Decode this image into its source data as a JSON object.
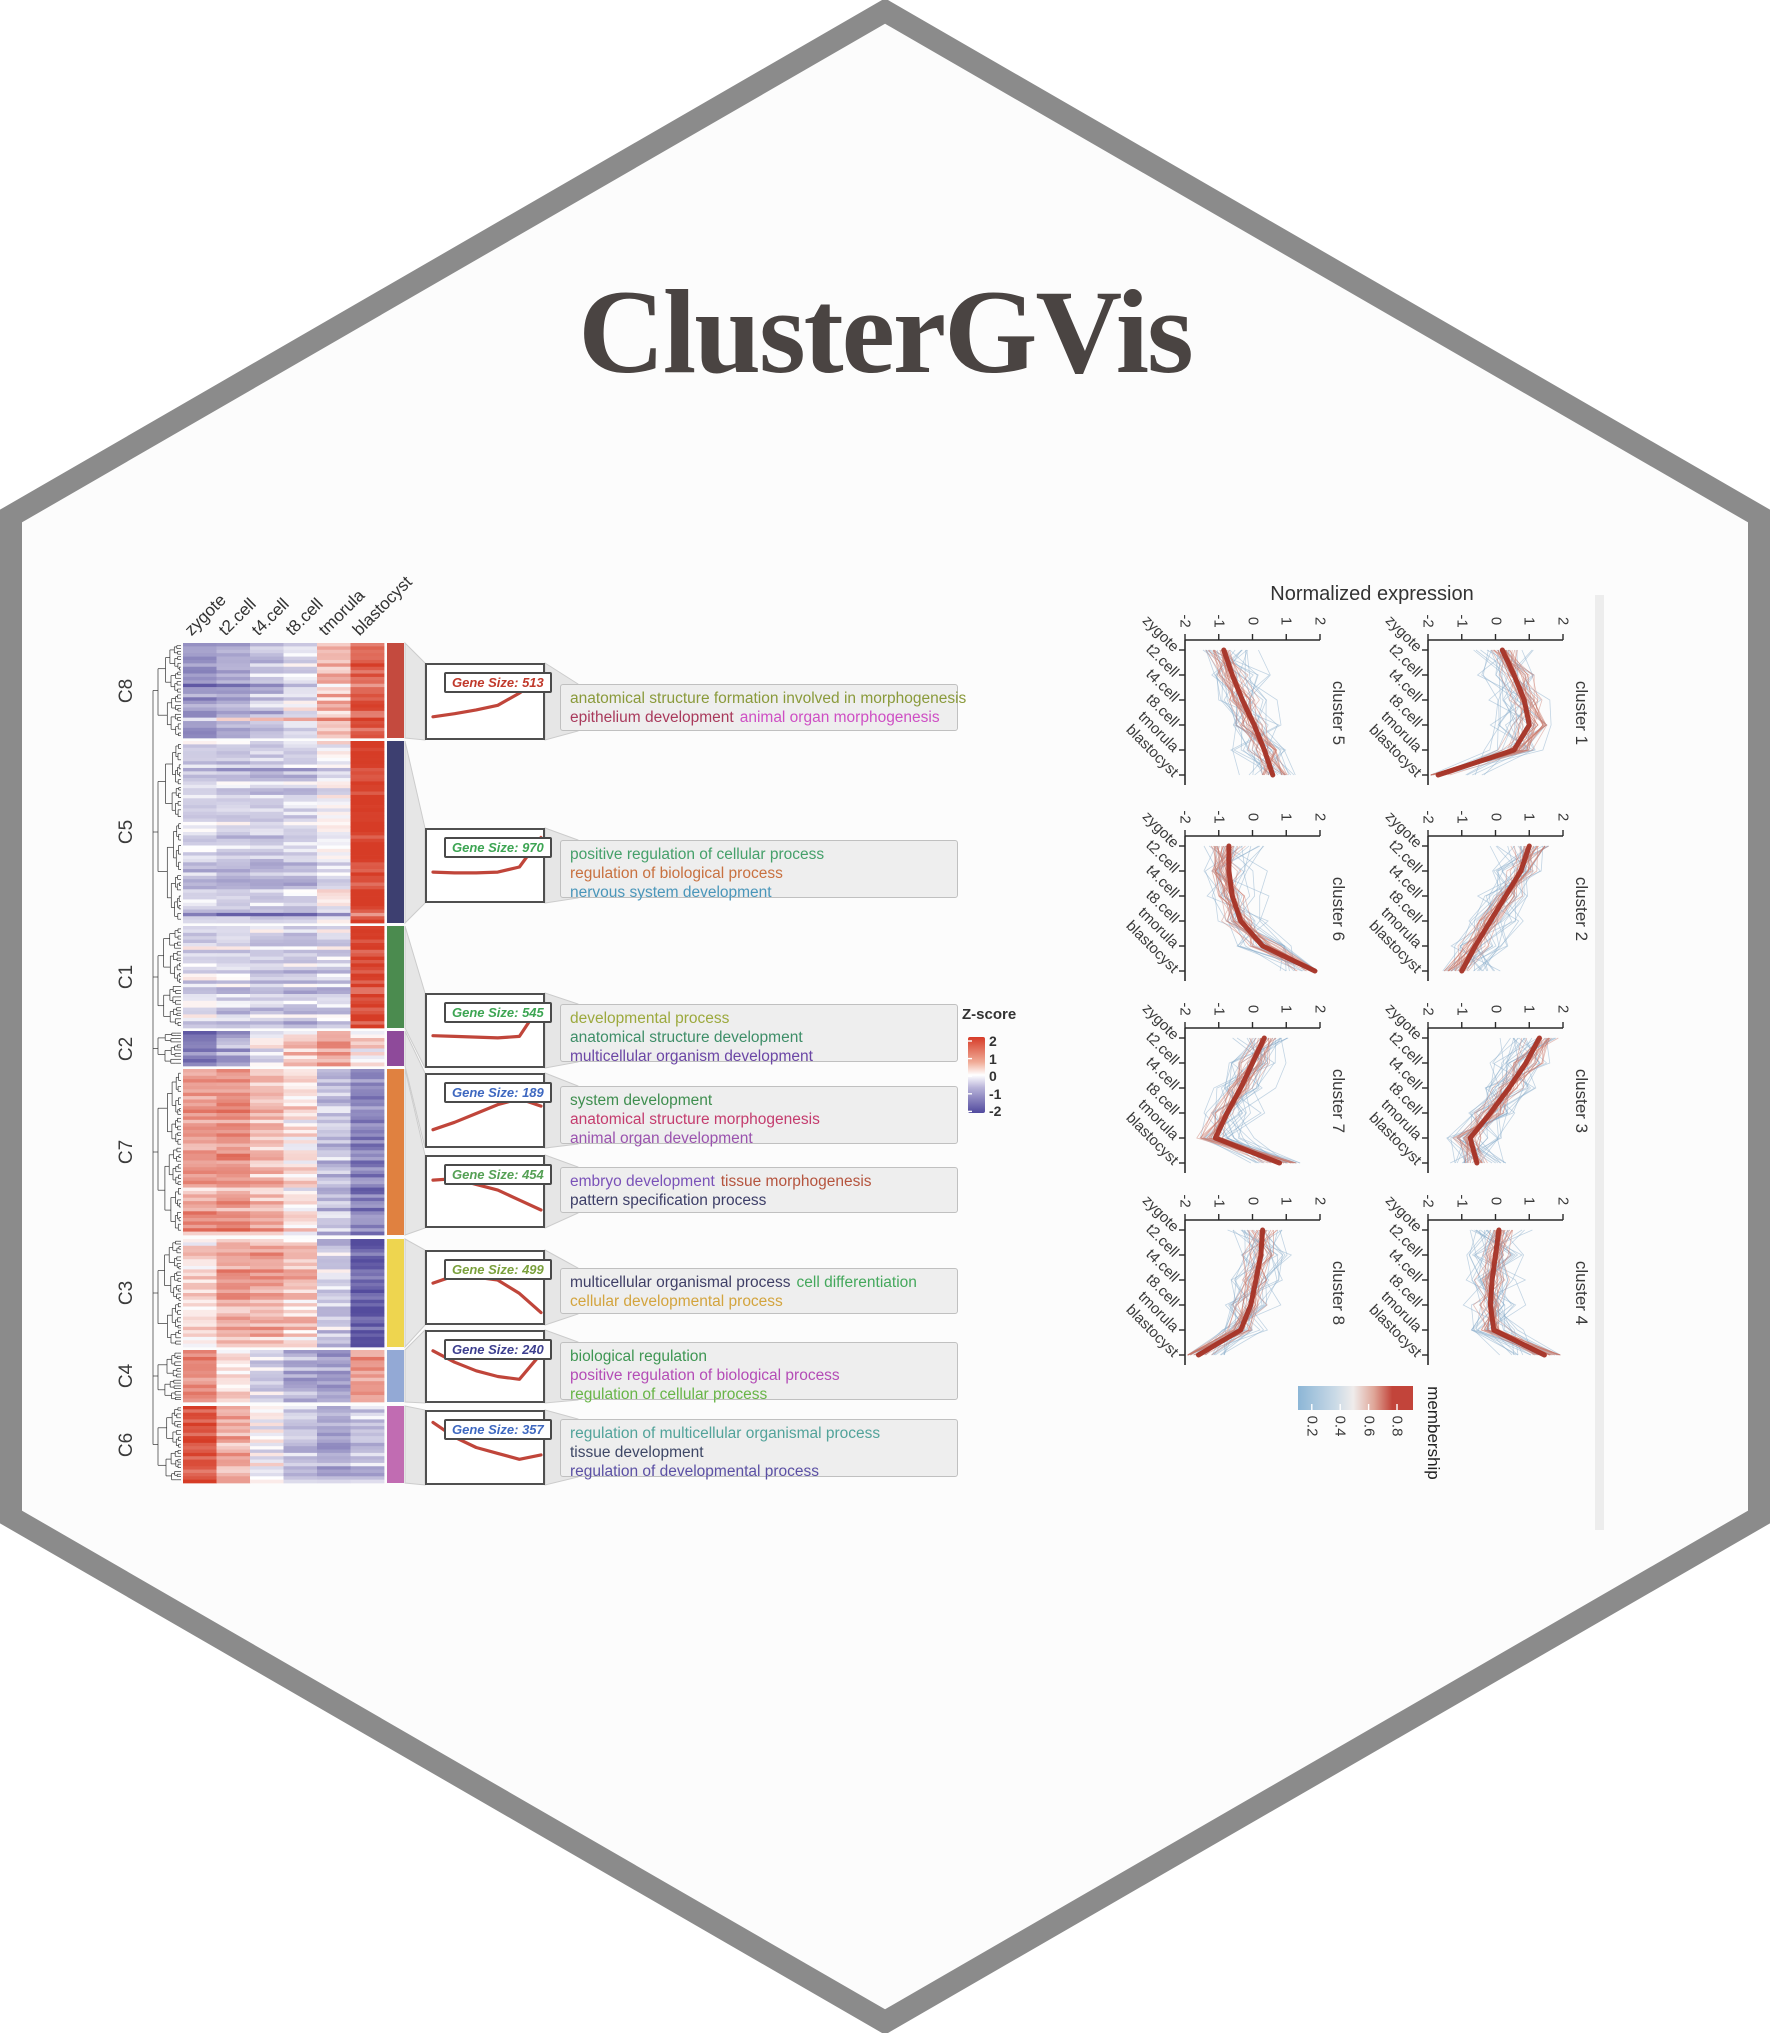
{
  "badge": {
    "title": "ClusterGVis"
  },
  "chart_data": [
    {
      "type": "heatmap",
      "columns": [
        "zygote",
        "t2.cell",
        "t4.cell",
        "t8.cell",
        "tmorula",
        "blastocyst"
      ],
      "zscore_legend": {
        "title": "Z-score",
        "ticks": [
          "2",
          "1",
          "0",
          "-1",
          "-2"
        ],
        "high_color": "#d63b28",
        "mid_color": "#ffffff",
        "low_color": "#514a9e"
      },
      "row_clusters": [
        {
          "id": "C8",
          "sidebar_color": "#c44a3e",
          "mean_z": [
            -1.0,
            -0.8,
            -0.55,
            -0.25,
            0.55,
            1.5
          ],
          "gene_size_label": "Gene Size: 513",
          "gene_size_color": "#c0392b",
          "term_lines": [
            [
              {
                "text": "anatomical structure formation involved in morphogenesis",
                "color": "#8a9a3b"
              }
            ],
            [
              {
                "text": "epithelium development",
                "color": "#a93a5c"
              },
              {
                "text": "animal organ morphogenesis",
                "color": "#ce4fc4"
              }
            ]
          ]
        },
        {
          "id": "C5",
          "sidebar_color": "#3d3f70",
          "mean_z": [
            -0.45,
            -0.5,
            -0.5,
            -0.45,
            -0.1,
            1.9
          ],
          "gene_size_label": "Gene Size: 970",
          "gene_size_color": "#3da553",
          "term_lines": [
            [
              {
                "text": "positive regulation of cellular process",
                "color": "#45a06a"
              }
            ],
            [
              {
                "text": "regulation of biological process",
                "color": "#c87140"
              }
            ],
            [
              {
                "text": "nervous system development",
                "color": "#4a96ba"
              }
            ]
          ]
        },
        {
          "id": "C1",
          "sidebar_color": "#4b8b4f",
          "mean_z": [
            -0.35,
            -0.4,
            -0.45,
            -0.5,
            -0.4,
            1.8
          ],
          "gene_size_label": "Gene Size: 545",
          "gene_size_color": "#3da553",
          "term_lines": [
            [
              {
                "text": "developmental process",
                "color": "#9ca93d"
              }
            ],
            [
              {
                "text": "anatomical structure development",
                "color": "#3e8e68"
              }
            ],
            [
              {
                "text": "multicellular organism development",
                "color": "#6b46a5"
              }
            ]
          ]
        },
        {
          "id": "C2",
          "sidebar_color": "#8e4a9a",
          "mean_z": [
            -1.3,
            -0.8,
            -0.2,
            0.4,
            0.8,
            0.3
          ],
          "gene_size_label": "Gene Size: 189",
          "gene_size_color": "#3e68c0",
          "term_lines": [
            [
              {
                "text": "system development",
                "color": "#3f8e4f"
              }
            ],
            [
              {
                "text": "anatomical structure morphogenesis",
                "color": "#c43c6e"
              }
            ],
            [
              {
                "text": "animal organ development",
                "color": "#9a52ae"
              }
            ]
          ]
        },
        {
          "id": "C7",
          "sidebar_color": "#e08140",
          "mean_z": [
            0.8,
            0.9,
            0.5,
            0.1,
            -0.6,
            -1.3
          ],
          "gene_size_label": "Gene Size: 454",
          "gene_size_color": "#55a055",
          "term_lines": [
            [
              {
                "text": "embryo development",
                "color": "#7a52b8"
              },
              {
                "text": "tissue morphogenesis",
                "color": "#b5543e"
              }
            ],
            [
              {
                "text": "pattern specification process",
                "color": "#3d3e68"
              }
            ]
          ]
        },
        {
          "id": "C3",
          "sidebar_color": "#eed54f",
          "mean_z": [
            0.3,
            0.8,
            0.7,
            0.5,
            -0.4,
            -1.7
          ],
          "gene_size_label": "Gene Size: 499",
          "gene_size_color": "#7aa03c",
          "term_lines": [
            [
              {
                "text": "multicellular organismal process",
                "color": "#3f3f66"
              },
              {
                "text": "cell differentiation",
                "color": "#44a85c"
              }
            ],
            [
              {
                "text": "cellular developmental process",
                "color": "#d3a43e"
              }
            ]
          ]
        },
        {
          "id": "C4",
          "sidebar_color": "#93a9d5",
          "mean_z": [
            1.1,
            0.3,
            -0.3,
            -0.7,
            -0.9,
            0.9
          ],
          "gene_size_label": "Gene Size: 240",
          "gene_size_color": "#3d3f8f",
          "term_lines": [
            [
              {
                "text": "biological regulation",
                "color": "#3f9653"
              }
            ],
            [
              {
                "text": "positive regulation of biological process",
                "color": "#b44cb6"
              }
            ],
            [
              {
                "text": "regulation of cellular process",
                "color": "#68b447"
              }
            ]
          ]
        },
        {
          "id": "C6",
          "sidebar_color": "#c16cb2",
          "mean_z": [
            1.7,
            0.7,
            0.0,
            -0.4,
            -0.8,
            -0.5
          ],
          "gene_size_label": "Gene Size: 357",
          "gene_size_color": "#3e68c0",
          "term_lines": [
            [
              {
                "text": "regulation of multicellular organismal process",
                "color": "#52a39a"
              }
            ],
            [
              {
                "text": "tissue development",
                "color": "#3e4766"
              }
            ],
            [
              {
                "text": "regulation of developmental process",
                "color": "#5b50a4"
              }
            ]
          ]
        }
      ]
    },
    {
      "type": "line",
      "title": "Normalized expression",
      "x": [
        "zygote",
        "t2.cell",
        "t4.cell",
        "t8.cell",
        "tmorula",
        "blastocyst"
      ],
      "value_ticks": [
        "-2",
        "-1",
        "0",
        "1",
        "2"
      ],
      "facets": [
        {
          "label": "cluster 5",
          "mean": [
            -0.85,
            -0.6,
            -0.3,
            0.05,
            0.35,
            0.6
          ]
        },
        {
          "label": "cluster 1",
          "mean": [
            0.2,
            0.55,
            0.85,
            1.0,
            0.55,
            -1.7
          ]
        },
        {
          "label": "cluster 6",
          "mean": [
            -0.7,
            -0.7,
            -0.6,
            -0.35,
            0.3,
            1.85
          ]
        },
        {
          "label": "cluster 2",
          "mean": [
            1.0,
            0.75,
            0.3,
            -0.15,
            -0.6,
            -1.0
          ]
        },
        {
          "label": "cluster 7",
          "mean": [
            0.35,
            0.0,
            -0.35,
            -0.75,
            -1.1,
            0.8
          ]
        },
        {
          "label": "cluster 3",
          "mean": [
            1.3,
            0.9,
            0.4,
            -0.15,
            -0.75,
            -0.55
          ]
        },
        {
          "label": "cluster 8",
          "mean": [
            0.3,
            0.25,
            0.1,
            -0.05,
            -0.35,
            -1.6
          ]
        },
        {
          "label": "cluster 4",
          "mean": [
            0.1,
            0.0,
            -0.1,
            -0.15,
            -0.05,
            1.45
          ]
        }
      ],
      "membership_legend": {
        "title": "membership",
        "ticks": [
          "0.2",
          "0.4",
          "0.6",
          "0.8"
        ],
        "low_color": "#8cb6d6",
        "high_color": "#c2443a"
      },
      "mean_line_color": "#a53125"
    }
  ]
}
